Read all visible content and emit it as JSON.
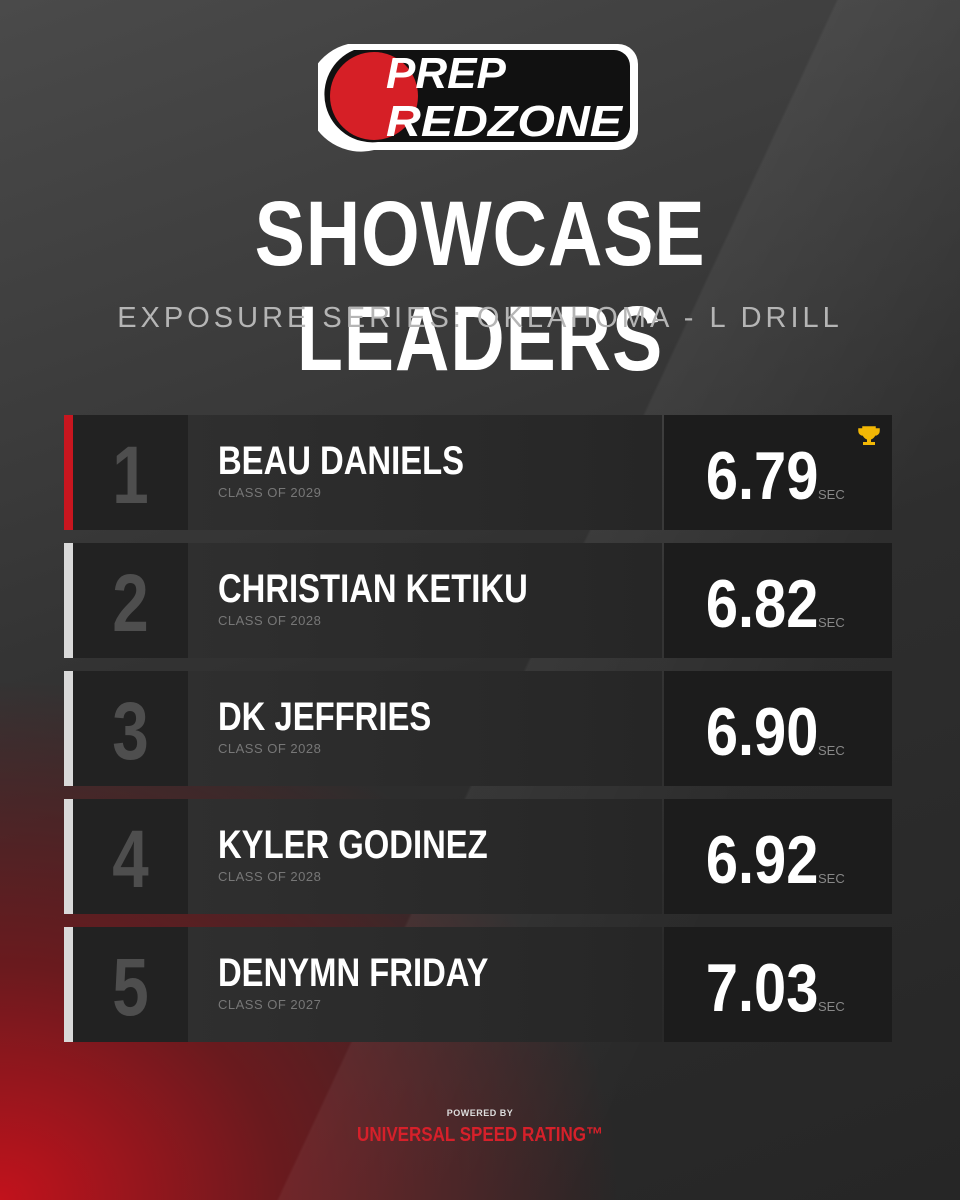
{
  "logo": {
    "line1": "PREP",
    "line2": "REDZONE"
  },
  "title": "SHOWCASE LEADERS",
  "subtitle": "EXPOSURE SERIES: OKLAHOMA - L DRILL",
  "leaders": [
    {
      "rank": "1",
      "name": "BEAU DANIELS",
      "class": "CLASS OF 2029",
      "time": "6.79",
      "unit": "SEC"
    },
    {
      "rank": "2",
      "name": "CHRISTIAN KETIKU",
      "class": "CLASS OF 2028",
      "time": "6.82",
      "unit": "SEC"
    },
    {
      "rank": "3",
      "name": "DK JEFFRIES",
      "class": "CLASS OF 2028",
      "time": "6.90",
      "unit": "SEC"
    },
    {
      "rank": "4",
      "name": "KYLER GODINEZ",
      "class": "CLASS OF 2028",
      "time": "6.92",
      "unit": "SEC"
    },
    {
      "rank": "5",
      "name": "DENYMN FRIDAY",
      "class": "CLASS OF 2027",
      "time": "7.03",
      "unit": "SEC"
    }
  ],
  "footer": {
    "powered_by": "POWERED BY",
    "brand": "UNIVERSAL SPEED RATING™"
  }
}
